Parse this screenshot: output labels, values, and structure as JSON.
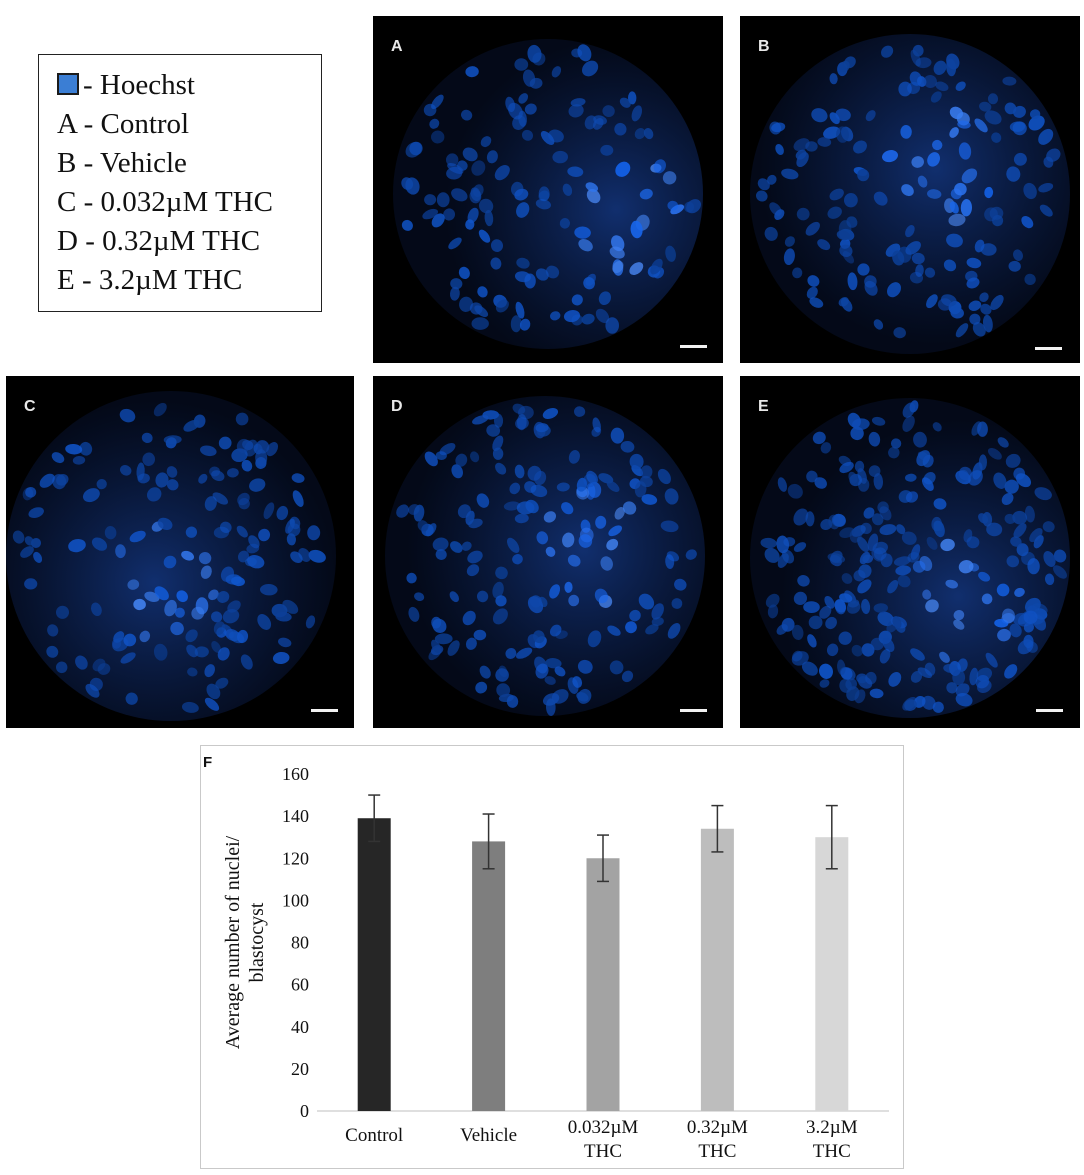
{
  "legend": {
    "hoechst_label": "- Hoechst",
    "hoechst_color": "#3b7ed4",
    "lines": [
      "A - Control",
      "B - Vehicle",
      "C - 0.032µM THC",
      "D - 0.32µM THC",
      "E - 3.2µM THC"
    ]
  },
  "panels": [
    {
      "letter": "A"
    },
    {
      "letter": "B"
    },
    {
      "letter": "C"
    },
    {
      "letter": "D"
    },
    {
      "letter": "E"
    }
  ],
  "chart_panel_letter": "F",
  "chart_data": {
    "type": "bar",
    "categories": [
      "Control",
      "Vehicle",
      "0.032µM THC",
      "0.32µM THC",
      "3.2µM THC"
    ],
    "values": [
      139,
      128,
      120,
      134,
      130
    ],
    "error": [
      11,
      13,
      11,
      11,
      15
    ],
    "colors": [
      "#262626",
      "#7e7e7e",
      "#a3a3a3",
      "#bdbdbd",
      "#d7d7d7"
    ],
    "ylabel_lines": [
      "Average number of nuclei/",
      "blastocyst"
    ],
    "ylim": [
      0,
      160
    ],
    "yticks": [
      0,
      20,
      40,
      60,
      80,
      100,
      120,
      140,
      160
    ],
    "grid": false
  }
}
